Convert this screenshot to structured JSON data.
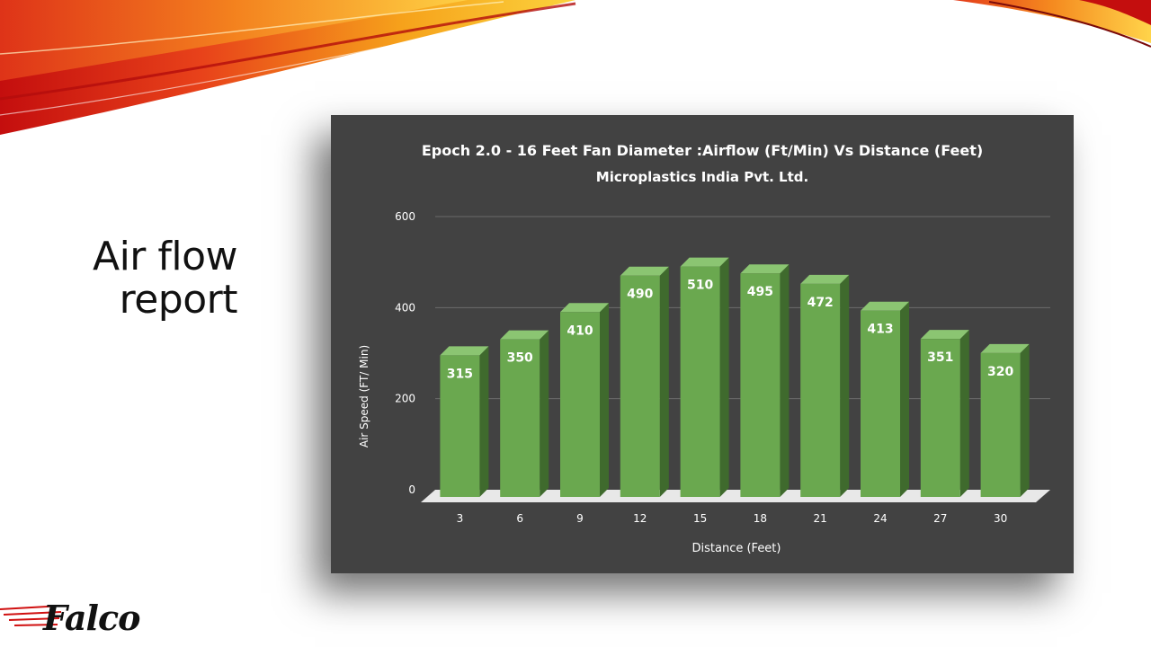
{
  "slide": {
    "title_line1": "Air flow",
    "title_line2": "report",
    "logo_text": "Falco",
    "accent_colors": [
      "#c40e0e",
      "#e8421a",
      "#f6a21b",
      "#fbd33d"
    ]
  },
  "chart_data": {
    "type": "bar",
    "title": "Epoch 2.0 - 16 Feet Fan Diameter :Airflow (Ft/Min) Vs Distance (Feet)",
    "subtitle": "Microplastics India Pvt. Ltd.",
    "xlabel": "Distance (Feet)",
    "ylabel": "Air Speed (FT/ Min)",
    "categories": [
      "3",
      "6",
      "9",
      "12",
      "15",
      "18",
      "21",
      "24",
      "27",
      "30"
    ],
    "values": [
      315,
      350,
      410,
      490,
      510,
      495,
      472,
      413,
      351,
      320
    ],
    "data_labels": [
      "315",
      "350",
      "410",
      "490",
      "510",
      "495",
      "472",
      "413",
      "351",
      "320"
    ],
    "ylim": [
      0,
      600
    ],
    "y_ticks": [
      "0",
      "200",
      "400",
      "600"
    ],
    "y_tick_values": [
      0,
      200,
      400,
      600
    ],
    "grid": true,
    "legend": "none",
    "bar_style": "3d",
    "colors": {
      "background": "#424242",
      "bar_front": "#6aa84f",
      "bar_side": "#3f6a2d",
      "bar_top": "#8bc572",
      "grid": "#6b6b6b",
      "text": "#ffffff",
      "floor": "#e8e8e8"
    }
  }
}
